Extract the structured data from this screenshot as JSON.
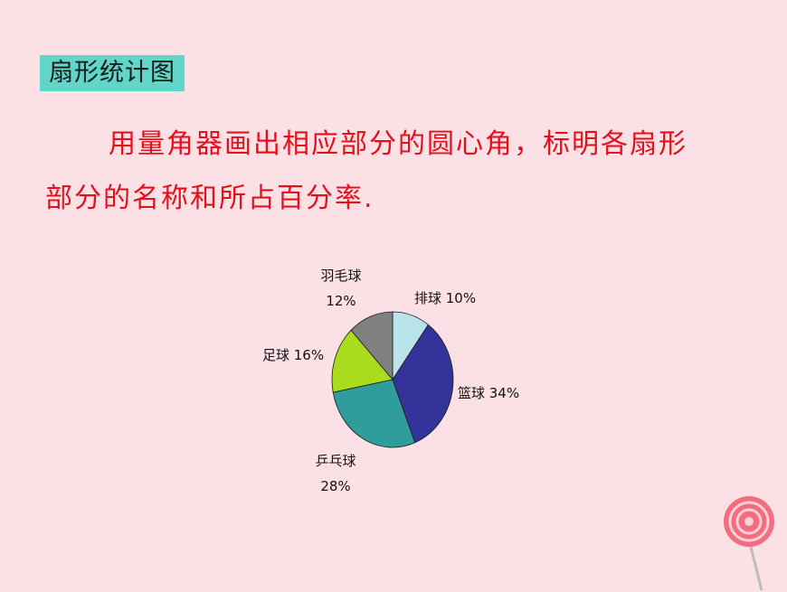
{
  "title_tag": "扇形统计图",
  "instruction": "用量角器画出相应部分的圆心角，标明各扇形部分的名称和所占百分率.",
  "chart_data": {
    "type": "pie",
    "slices": [
      {
        "label": "排球",
        "value": 10,
        "display": "10%",
        "color": "#b8e3ea"
      },
      {
        "label": "篮球",
        "value": 34,
        "display": "34%",
        "color": "#333399"
      },
      {
        "label": "乒乓球",
        "value": 28,
        "display": "28%",
        "color": "#2e9d9c"
      },
      {
        "label": "足球",
        "value": 16,
        "display": "16%",
        "color": "#aadc1e"
      },
      {
        "label": "羽毛球",
        "value": 12,
        "display": "12%",
        "color": "#808080"
      }
    ]
  }
}
